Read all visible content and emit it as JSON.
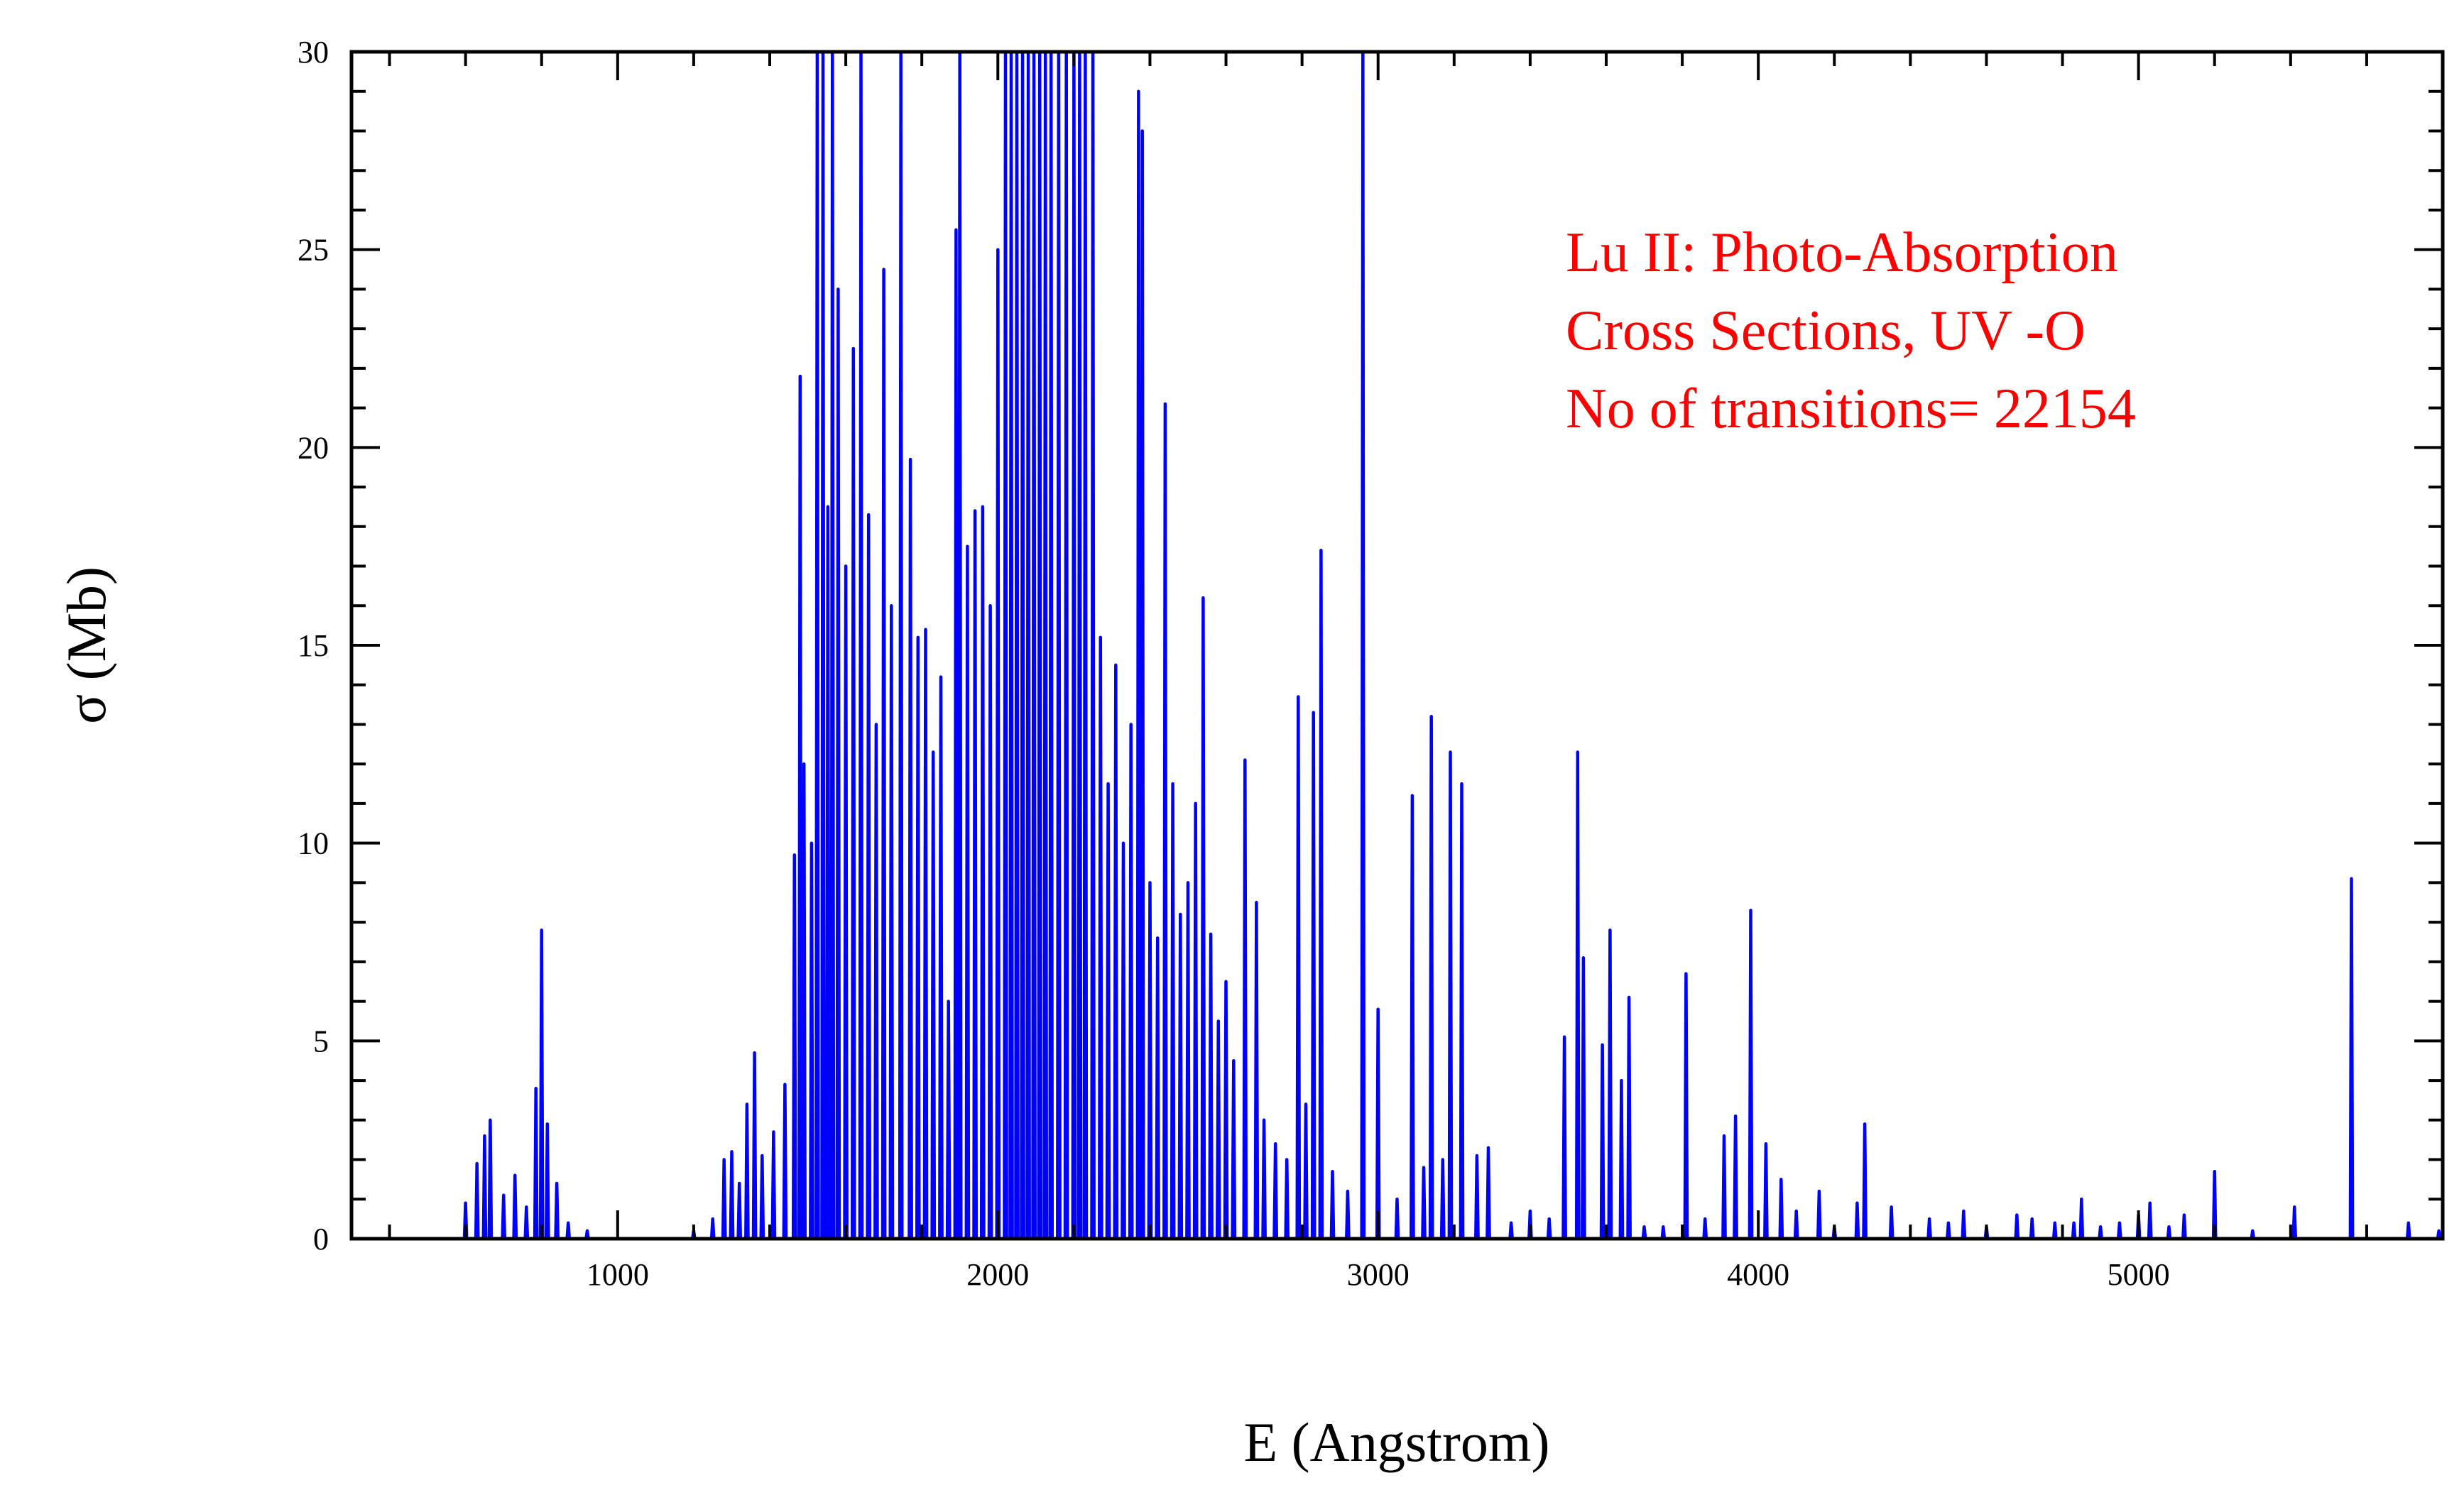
{
  "chart_data": {
    "type": "line",
    "title": "",
    "xlabel": "E (Angstrom)",
    "ylabel": "σ (Mb)",
    "xlim": [
      300,
      5800
    ],
    "ylim": [
      0,
      30
    ],
    "xticks": [
      1000,
      2000,
      3000,
      4000,
      5000
    ],
    "yticks": [
      0,
      5,
      10,
      15,
      20,
      25,
      30
    ],
    "grid": false,
    "annotation": [
      "Lu II: Photo-Absorption",
      "Cross Sections, UV -O",
      "No of transitions= 22154"
    ],
    "colors": {
      "series": "#0000ff",
      "annotation": "#ff0000",
      "axis": "#000000"
    },
    "series": [
      {
        "peaks": [
          [
            600,
            0.9
          ],
          [
            630,
            1.9
          ],
          [
            650,
            2.6
          ],
          [
            665,
            3.0
          ],
          [
            700,
            1.1
          ],
          [
            730,
            1.6
          ],
          [
            760,
            0.8
          ],
          [
            785,
            3.8
          ],
          [
            800,
            7.8
          ],
          [
            815,
            2.9
          ],
          [
            840,
            1.4
          ],
          [
            870,
            0.4
          ],
          [
            920,
            0.2
          ],
          [
            1200,
            0.2
          ],
          [
            1250,
            0.5
          ],
          [
            1280,
            2.0
          ],
          [
            1300,
            2.2
          ],
          [
            1320,
            1.4
          ],
          [
            1340,
            3.4
          ],
          [
            1360,
            4.7
          ],
          [
            1380,
            2.1
          ],
          [
            1410,
            2.7
          ],
          [
            1440,
            3.9
          ],
          [
            1465,
            9.7
          ],
          [
            1480,
            21.8
          ],
          [
            1490,
            12.0
          ],
          [
            1510,
            10.0
          ],
          [
            1525,
            30
          ],
          [
            1540,
            30
          ],
          [
            1553,
            18.5
          ],
          [
            1565,
            30
          ],
          [
            1580,
            24.0
          ],
          [
            1600,
            17.0
          ],
          [
            1620,
            22.5
          ],
          [
            1640,
            30
          ],
          [
            1660,
            18.3
          ],
          [
            1680,
            13.0
          ],
          [
            1700,
            24.5
          ],
          [
            1720,
            16.0
          ],
          [
            1745,
            30
          ],
          [
            1770,
            19.7
          ],
          [
            1790,
            15.2
          ],
          [
            1810,
            15.4
          ],
          [
            1830,
            12.3
          ],
          [
            1850,
            14.2
          ],
          [
            1870,
            6.0
          ],
          [
            1890,
            25.5
          ],
          [
            1900,
            30
          ],
          [
            1920,
            17.5
          ],
          [
            1940,
            18.4
          ],
          [
            1960,
            18.5
          ],
          [
            1980,
            16.0
          ],
          [
            2000,
            25.0
          ],
          [
            2020,
            30
          ],
          [
            2035,
            30
          ],
          [
            2050,
            30
          ],
          [
            2065,
            30
          ],
          [
            2080,
            30
          ],
          [
            2095,
            30
          ],
          [
            2110,
            30
          ],
          [
            2125,
            30
          ],
          [
            2140,
            30
          ],
          [
            2160,
            30
          ],
          [
            2180,
            30
          ],
          [
            2200,
            30
          ],
          [
            2215,
            30
          ],
          [
            2230,
            30
          ],
          [
            2250,
            30
          ],
          [
            2270,
            15.2
          ],
          [
            2290,
            11.5
          ],
          [
            2310,
            14.5
          ],
          [
            2330,
            10.0
          ],
          [
            2350,
            13.0
          ],
          [
            2370,
            29.0
          ],
          [
            2380,
            28.0
          ],
          [
            2400,
            9.0
          ],
          [
            2420,
            7.6
          ],
          [
            2440,
            21.1
          ],
          [
            2460,
            11.5
          ],
          [
            2480,
            8.2
          ],
          [
            2500,
            9.0
          ],
          [
            2520,
            11.0
          ],
          [
            2540,
            16.2
          ],
          [
            2560,
            7.7
          ],
          [
            2580,
            5.5
          ],
          [
            2600,
            6.5
          ],
          [
            2620,
            4.5
          ],
          [
            2650,
            12.1
          ],
          [
            2680,
            8.5
          ],
          [
            2700,
            3.0
          ],
          [
            2730,
            2.4
          ],
          [
            2760,
            2.0
          ],
          [
            2790,
            13.7
          ],
          [
            2810,
            3.4
          ],
          [
            2830,
            13.3
          ],
          [
            2850,
            17.4
          ],
          [
            2880,
            1.7
          ],
          [
            2920,
            1.2
          ],
          [
            2960,
            30
          ],
          [
            3000,
            5.8
          ],
          [
            3050,
            1.0
          ],
          [
            3090,
            11.2
          ],
          [
            3120,
            1.8
          ],
          [
            3140,
            13.2
          ],
          [
            3170,
            2.0
          ],
          [
            3190,
            12.3
          ],
          [
            3220,
            11.5
          ],
          [
            3260,
            2.1
          ],
          [
            3290,
            2.3
          ],
          [
            3350,
            0.4
          ],
          [
            3400,
            0.7
          ],
          [
            3450,
            0.5
          ],
          [
            3490,
            5.1
          ],
          [
            3525,
            12.3
          ],
          [
            3540,
            7.1
          ],
          [
            3590,
            4.9
          ],
          [
            3610,
            7.8
          ],
          [
            3640,
            4.0
          ],
          [
            3660,
            6.1
          ],
          [
            3700,
            0.3
          ],
          [
            3750,
            0.3
          ],
          [
            3810,
            6.7
          ],
          [
            3860,
            0.5
          ],
          [
            3910,
            2.6
          ],
          [
            3940,
            3.1
          ],
          [
            3980,
            8.3
          ],
          [
            4020,
            2.4
          ],
          [
            4060,
            1.5
          ],
          [
            4100,
            0.7
          ],
          [
            4160,
            1.2
          ],
          [
            4200,
            0.3
          ],
          [
            4260,
            0.9
          ],
          [
            4280,
            2.9
          ],
          [
            4350,
            0.8
          ],
          [
            4450,
            0.5
          ],
          [
            4500,
            0.4
          ],
          [
            4540,
            0.7
          ],
          [
            4600,
            0.3
          ],
          [
            4680,
            0.6
          ],
          [
            4720,
            0.5
          ],
          [
            4780,
            0.4
          ],
          [
            4830,
            0.4
          ],
          [
            4850,
            1.0
          ],
          [
            4900,
            0.3
          ],
          [
            4950,
            0.4
          ],
          [
            5000,
            0.6
          ],
          [
            5030,
            0.9
          ],
          [
            5080,
            0.3
          ],
          [
            5120,
            0.6
          ],
          [
            5200,
            1.7
          ],
          [
            5300,
            0.2
          ],
          [
            5410,
            0.8
          ],
          [
            5560,
            9.1
          ],
          [
            5710,
            0.4
          ],
          [
            5790,
            0.2
          ]
        ]
      }
    ]
  }
}
